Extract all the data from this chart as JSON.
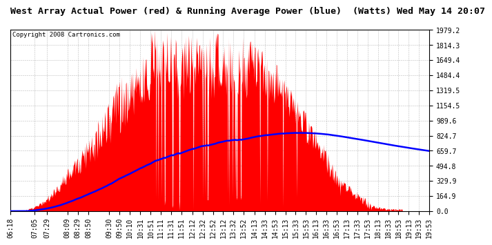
{
  "title": "West Array Actual Power (red) & Running Average Power (blue)  (Watts) Wed May 14 20:07",
  "copyright": "Copyright 2008 Cartronics.com",
  "background_color": "#ffffff",
  "plot_bg_color": "#ffffff",
  "y_labels": [
    1979.2,
    1814.3,
    1649.4,
    1484.4,
    1319.5,
    1154.5,
    989.6,
    824.7,
    659.7,
    494.8,
    329.9,
    164.9,
    0.0
  ],
  "x_labels": [
    "06:18",
    "07:05",
    "07:29",
    "08:09",
    "08:29",
    "08:50",
    "09:30",
    "09:50",
    "10:10",
    "10:31",
    "10:51",
    "11:11",
    "11:31",
    "11:51",
    "12:12",
    "12:32",
    "12:52",
    "13:12",
    "13:32",
    "13:52",
    "14:13",
    "14:33",
    "14:53",
    "15:13",
    "15:33",
    "15:53",
    "16:13",
    "16:33",
    "16:53",
    "17:13",
    "17:33",
    "17:53",
    "18:13",
    "18:33",
    "18:53",
    "19:13",
    "19:33",
    "19:53"
  ],
  "x_hours": [
    6.3,
    7.0833,
    7.4833,
    8.15,
    8.4833,
    8.8333,
    9.5,
    9.8333,
    10.1667,
    10.5167,
    10.85,
    11.1833,
    11.5167,
    11.85,
    12.2,
    12.5333,
    12.8667,
    13.2,
    13.5333,
    13.8667,
    14.2167,
    14.55,
    14.8833,
    15.2167,
    15.55,
    15.8833,
    16.2167,
    16.55,
    16.8833,
    17.2167,
    17.55,
    17.8833,
    18.2167,
    18.55,
    18.8833,
    19.2167,
    19.55,
    19.8833
  ],
  "ymax": 1979.2,
  "ymin": 0.0,
  "title_fontsize": 9.5,
  "copyright_fontsize": 6.5,
  "tick_fontsize": 7,
  "red_color": "#ff0000",
  "blue_color": "#0000ff",
  "grid_color": "#bbbbbb",
  "xmin": 6.3,
  "xmax": 19.8833
}
